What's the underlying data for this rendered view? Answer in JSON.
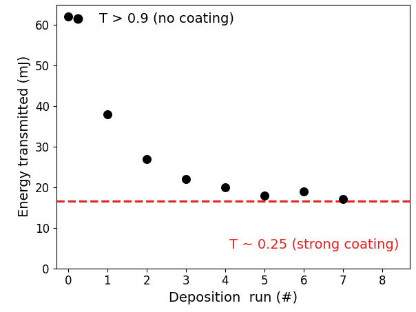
{
  "chart_data": {
    "type": "scatter",
    "xlabel": "Deposition  run (#)",
    "ylabel": "Energy transmitted (mJ)",
    "series": [
      {
        "name": "T > 0.9 (no coating)",
        "color": "#000000",
        "marker": "circle",
        "x": [
          0,
          1,
          2,
          3,
          4,
          5,
          6,
          7
        ],
        "values": [
          62,
          38,
          27,
          22,
          20,
          18,
          19,
          17
        ]
      }
    ],
    "reference_line": {
      "value": 16.6,
      "label": "T ~ 0.25 (strong coating)",
      "color": "#e8201e",
      "line_style": "dashed"
    },
    "xlim": [
      -0.3,
      8.7
    ],
    "xticks": [
      0,
      1,
      2,
      3,
      4,
      5,
      6,
      7,
      8
    ],
    "ylim": [
      0,
      65
    ],
    "yticks": [
      0,
      10,
      20,
      30,
      40,
      50,
      60
    ],
    "legend": "upper left",
    "grid": false
  }
}
